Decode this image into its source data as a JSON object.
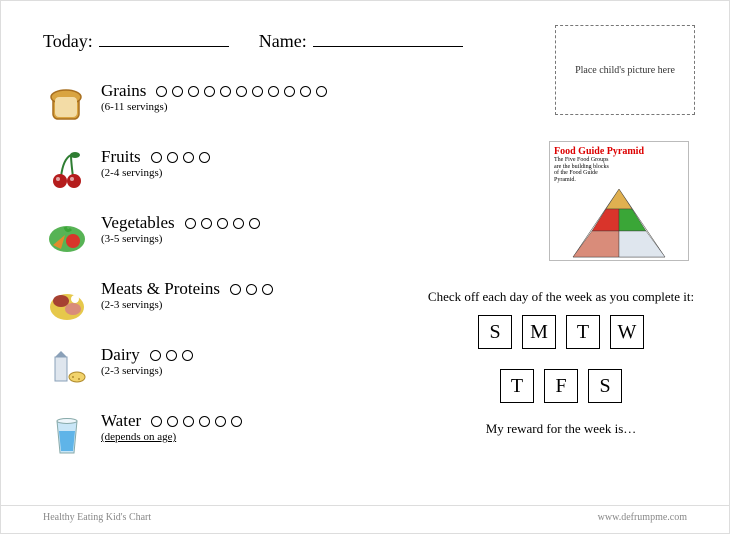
{
  "header": {
    "today_label": "Today:",
    "name_label": "Name:"
  },
  "picture_box": {
    "text": "Place child's picture here"
  },
  "categories": [
    {
      "name": "Grains",
      "sub": "(6-11 servings)",
      "count": 11,
      "icon": "bread",
      "colors": [
        "#d9a441",
        "#a86f1f"
      ]
    },
    {
      "name": "Fruits",
      "sub": "(2-4 servings)",
      "count": 4,
      "icon": "cherries",
      "colors": [
        "#b51d1d",
        "#2e7d32"
      ]
    },
    {
      "name": "Vegetables",
      "sub": "(3-5 servings)",
      "count": 5,
      "icon": "veggies",
      "colors": [
        "#3aa637",
        "#e28b2b",
        "#d9342b"
      ]
    },
    {
      "name": "Meats & Proteins",
      "sub": "(2-3 servings)",
      "count": 3,
      "icon": "meat",
      "colors": [
        "#e6c84b",
        "#a64132",
        "#d98c7a"
      ]
    },
    {
      "name": "Dairy",
      "sub": "(2-3 servings)",
      "count": 3,
      "icon": "dairy",
      "colors": [
        "#dfe6ee",
        "#f2d36b",
        "#8aa0b8"
      ]
    },
    {
      "name": "Water",
      "sub": "(depends on age)",
      "count": 6,
      "icon": "water",
      "colors": [
        "#5fb4e8",
        "#c9e6f7"
      ],
      "sub_underline": true
    }
  ],
  "pyramid": {
    "title": "Food Guide Pyramid",
    "subtitle": "The Five Food Groups are the building blocks of the Food Guide Pyramid.",
    "segments": [
      "#e0b050",
      "#d9342b",
      "#3aa637",
      "#d98c7a",
      "#dfe6ee",
      "#f2e36b"
    ]
  },
  "week": {
    "instruction": "Check off each day of the week as you complete it:",
    "days": [
      "S",
      "M",
      "T",
      "W",
      "T",
      "F",
      "S"
    ],
    "reward_text": "My reward for the week is…"
  },
  "footer": {
    "left": "Healthy Eating Kid's Chart",
    "right": "www.defrumpme.com"
  }
}
